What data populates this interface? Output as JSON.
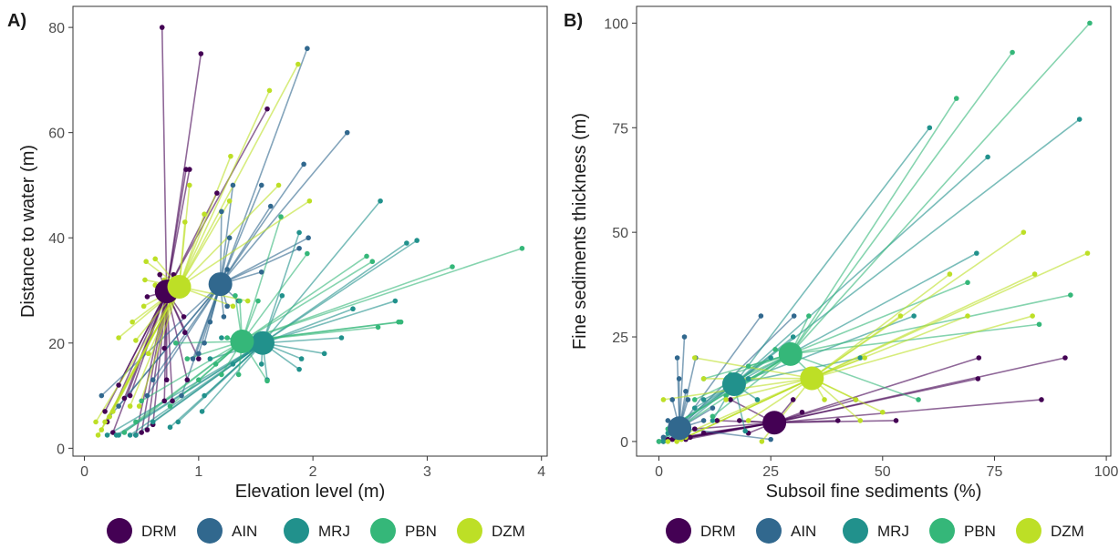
{
  "colors": {
    "DRM": "#440154",
    "AIN": "#31688e",
    "MRJ": "#21918c",
    "PBN": "#35b779",
    "DZM": "#bddf26"
  },
  "chart_data": [
    {
      "panel": "A)",
      "type": "scatter",
      "xlabel": "Elevation level (m)",
      "ylabel": "Distance to water (m)",
      "xlim": [
        -0.1,
        4.05
      ],
      "ylim": [
        -1.5,
        84
      ],
      "xticks": [
        0,
        1,
        2,
        3,
        4
      ],
      "yticks": [
        0,
        20,
        40,
        60,
        80
      ],
      "legend": "bottom",
      "grid": false,
      "series": [
        {
          "name": "DRM",
          "centroid": [
            0.72,
            29.8
          ],
          "points": [
            [
              0.68,
              80
            ],
            [
              1.02,
              75
            ],
            [
              0.92,
              53
            ],
            [
              0.89,
              53
            ],
            [
              1.6,
              64.5
            ],
            [
              1.16,
              48.5
            ],
            [
              0.55,
              28.8
            ],
            [
              0.8,
              29
            ],
            [
              0.87,
              25
            ],
            [
              0.88,
              22
            ],
            [
              0.9,
              13
            ],
            [
              0.78,
              33
            ],
            [
              0.66,
              33
            ],
            [
              0.7,
              19
            ],
            [
              0.77,
              9
            ],
            [
              0.7,
              9
            ],
            [
              0.6,
              4.5
            ],
            [
              0.55,
              3.5
            ],
            [
              0.5,
              3
            ],
            [
              0.45,
              2.5
            ],
            [
              0.4,
              10
            ],
            [
              0.35,
              9.5
            ],
            [
              0.3,
              12
            ],
            [
              0.25,
              3
            ],
            [
              0.18,
              7
            ],
            [
              0.2,
              5
            ],
            [
              0.72,
              13
            ],
            [
              1.0,
              17
            ]
          ]
        },
        {
          "name": "AIN",
          "centroid": [
            1.19,
            31.2
          ],
          "points": [
            [
              1.95,
              76
            ],
            [
              2.3,
              60
            ],
            [
              1.92,
              54
            ],
            [
              1.63,
              46
            ],
            [
              1.96,
              40
            ],
            [
              1.88,
              38
            ],
            [
              1.55,
              33.5
            ],
            [
              1.55,
              50
            ],
            [
              1.3,
              50
            ],
            [
              1.2,
              45
            ],
            [
              1.25,
              34
            ],
            [
              1.27,
              40
            ],
            [
              1.22,
              25
            ],
            [
              1.1,
              24
            ],
            [
              1.05,
              20
            ],
            [
              1.0,
              18
            ],
            [
              0.95,
              17
            ],
            [
              0.85,
              10
            ],
            [
              0.55,
              10
            ],
            [
              0.6,
              13
            ],
            [
              0.3,
              8
            ],
            [
              0.22,
              6
            ],
            [
              0.15,
              10
            ],
            [
              1.35,
              28
            ],
            [
              1.25,
              27
            ]
          ]
        },
        {
          "name": "MRJ",
          "centroid": [
            1.56,
            20.0
          ],
          "points": [
            [
              2.59,
              47
            ],
            [
              2.91,
              39.5
            ],
            [
              2.82,
              39
            ],
            [
              1.88,
              41
            ],
            [
              2.72,
              28
            ],
            [
              2.35,
              26.5
            ],
            [
              2.25,
              21
            ],
            [
              2.1,
              18
            ],
            [
              1.9,
              17
            ],
            [
              1.88,
              15
            ],
            [
              1.73,
              29
            ],
            [
              1.6,
              13
            ],
            [
              1.55,
              16
            ],
            [
              1.45,
              19
            ],
            [
              1.2,
              21
            ],
            [
              1.1,
              17
            ],
            [
              1.05,
              10
            ],
            [
              1.03,
              7
            ],
            [
              0.82,
              5
            ],
            [
              0.75,
              4
            ],
            [
              0.6,
              5
            ],
            [
              0.45,
              2.5
            ],
            [
              0.4,
              2.5
            ],
            [
              0.3,
              2.5
            ],
            [
              0.2,
              2.5
            ],
            [
              0.28,
              2.5
            ],
            [
              1.3,
              16
            ]
          ]
        },
        {
          "name": "PBN",
          "centroid": [
            1.38,
            20.3
          ],
          "points": [
            [
              3.83,
              38
            ],
            [
              3.22,
              34.5
            ],
            [
              2.52,
              35.5
            ],
            [
              2.47,
              36.5
            ],
            [
              1.95,
              37
            ],
            [
              1.72,
              44
            ],
            [
              1.52,
              28
            ],
            [
              1.36,
              28
            ],
            [
              1.32,
              29
            ],
            [
              1.6,
              12.8
            ],
            [
              1.35,
              14
            ],
            [
              1.2,
              14
            ],
            [
              1.15,
              16
            ],
            [
              1.0,
              13
            ],
            [
              0.9,
              17
            ],
            [
              0.8,
              20
            ],
            [
              0.75,
              8
            ],
            [
              0.5,
              9
            ],
            [
              0.45,
              5
            ],
            [
              0.35,
              3
            ],
            [
              2.77,
              24
            ],
            [
              2.75,
              24
            ],
            [
              2.57,
              23
            ],
            [
              1.25,
              21
            ]
          ]
        },
        {
          "name": "DZM",
          "centroid": [
            0.83,
            30.7
          ],
          "points": [
            [
              1.87,
              73
            ],
            [
              1.62,
              68
            ],
            [
              1.7,
              50
            ],
            [
              1.97,
              47
            ],
            [
              1.28,
              55.5
            ],
            [
              1.27,
              47
            ],
            [
              1.05,
              44.5
            ],
            [
              0.92,
              50
            ],
            [
              0.88,
              43
            ],
            [
              0.7,
              32
            ],
            [
              0.62,
              31
            ],
            [
              0.62,
              36
            ],
            [
              0.54,
              35.5
            ],
            [
              0.53,
              32
            ],
            [
              0.52,
              27
            ],
            [
              0.42,
              24
            ],
            [
              0.3,
              21
            ],
            [
              0.45,
              20.5
            ],
            [
              0.56,
              18
            ],
            [
              0.48,
              8
            ],
            [
              0.4,
              8
            ],
            [
              0.25,
              7
            ],
            [
              0.22,
              6
            ],
            [
              0.18,
              5
            ],
            [
              0.15,
              3.5
            ],
            [
              0.1,
              5
            ],
            [
              0.12,
              2.5
            ],
            [
              1.43,
              28
            ],
            [
              1.3,
              27
            ]
          ]
        }
      ]
    },
    {
      "panel": "B)",
      "type": "scatter",
      "xlabel": "Subsoil fine sediments (%)",
      "ylabel": "Fine sediments thickness (m)",
      "xlim": [
        -5,
        101
      ],
      "ylim": [
        -3.5,
        104
      ],
      "xticks": [
        0,
        25,
        50,
        75,
        100
      ],
      "yticks": [
        0,
        25,
        50,
        75,
        100
      ],
      "legend": "bottom",
      "grid": false,
      "series": [
        {
          "name": "DRM",
          "centroid": [
            25.8,
            4.5
          ],
          "points": [
            [
              90.8,
              20
            ],
            [
              85.5,
              10
            ],
            [
              71.5,
              20
            ],
            [
              71.3,
              15
            ],
            [
              53,
              5
            ],
            [
              44,
              10
            ],
            [
              40,
              5
            ],
            [
              32,
              7
            ],
            [
              30,
              10
            ],
            [
              20,
              2
            ],
            [
              18,
              5
            ],
            [
              16,
              10
            ],
            [
              13,
              5
            ],
            [
              10,
              2
            ],
            [
              8,
              3
            ],
            [
              6,
              0.5
            ],
            [
              4,
              0.5
            ],
            [
              3,
              0.5
            ],
            [
              2,
              0.5
            ],
            [
              1,
              0
            ],
            [
              7,
              1
            ]
          ]
        },
        {
          "name": "AIN",
          "centroid": [
            4.6,
            3.2
          ],
          "points": [
            [
              30.2,
              30
            ],
            [
              25,
              0.5
            ],
            [
              22.8,
              30
            ],
            [
              5.7,
              25
            ],
            [
              4.1,
              20
            ],
            [
              4.5,
              15
            ],
            [
              6,
              12
            ],
            [
              6.5,
              10
            ],
            [
              8.2,
              20
            ],
            [
              3,
              10
            ],
            [
              2,
              5
            ],
            [
              1,
              1
            ],
            [
              0,
              0
            ],
            [
              10,
              5
            ],
            [
              12,
              8
            ]
          ]
        },
        {
          "name": "MRJ",
          "centroid": [
            16.8,
            13.7
          ],
          "points": [
            [
              94,
              77
            ],
            [
              73.5,
              68
            ],
            [
              60.5,
              75
            ],
            [
              71,
              45
            ],
            [
              57,
              30
            ],
            [
              45,
              20
            ],
            [
              30,
              25
            ],
            [
              20,
              15
            ],
            [
              19.3,
              2.5
            ],
            [
              12,
              5
            ],
            [
              10,
              10
            ],
            [
              8,
              8
            ],
            [
              5,
              5
            ],
            [
              2,
              2
            ],
            [
              1,
              0
            ],
            [
              22,
              10
            ],
            [
              25,
              20
            ]
          ]
        },
        {
          "name": "PBN",
          "centroid": [
            29.4,
            20.9
          ],
          "points": [
            [
              96.3,
              100
            ],
            [
              79,
              93
            ],
            [
              66.5,
              82
            ],
            [
              92,
              35
            ],
            [
              85,
              28
            ],
            [
              69,
              38
            ],
            [
              58,
              10
            ],
            [
              33.5,
              30
            ],
            [
              34.2,
              16
            ],
            [
              26,
              22
            ],
            [
              20,
              18
            ],
            [
              16,
              16
            ],
            [
              15,
              11
            ],
            [
              10,
              15
            ],
            [
              8,
              10
            ],
            [
              5,
              5
            ],
            [
              2,
              3
            ],
            [
              0,
              0
            ],
            [
              12,
              6
            ]
          ]
        },
        {
          "name": "DZM",
          "centroid": [
            34.2,
            15.1
          ],
          "points": [
            [
              95.8,
              45
            ],
            [
              81.5,
              50
            ],
            [
              84,
              40
            ],
            [
              83.5,
              30
            ],
            [
              69,
              30
            ],
            [
              65,
              40
            ],
            [
              54,
              30
            ],
            [
              50,
              7
            ],
            [
              46,
              20
            ],
            [
              45,
              5
            ],
            [
              44,
              10
            ],
            [
              37,
              10
            ],
            [
              23,
              0
            ],
            [
              20,
              5
            ],
            [
              15,
              10
            ],
            [
              10,
              15
            ],
            [
              8,
              20
            ],
            [
              6,
              1
            ],
            [
              5,
              0.5
            ],
            [
              4,
              0
            ],
            [
              2,
              0
            ],
            [
              1,
              10
            ]
          ]
        }
      ]
    }
  ],
  "legend_items": [
    "DRM",
    "AIN",
    "MRJ",
    "PBN",
    "DZM"
  ]
}
